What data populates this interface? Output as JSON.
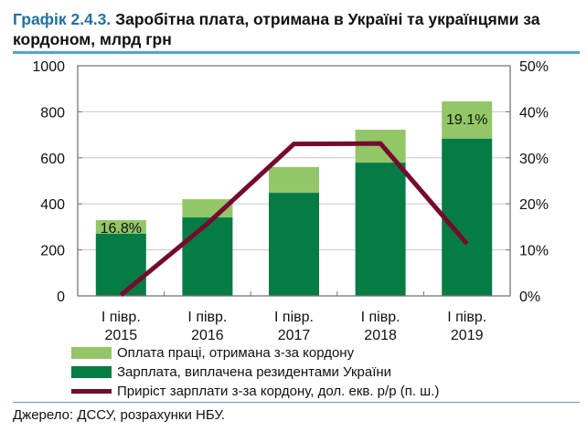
{
  "title": {
    "number": "Графік 2.4.3.",
    "text": " Заробітна плата, отримана в Україні та українцями за кордоном, млрд грн"
  },
  "source": "Джерело: ДССУ, розрахунки НБУ.",
  "colors": {
    "abroad": "#92C666",
    "domestic": "#067C45",
    "growth": "#760A2F",
    "title_accent": "#1F6FA6"
  },
  "chart_data": {
    "type": "bar",
    "stacked": true,
    "categories": [
      [
        "І півр.",
        "2015"
      ],
      [
        "І півр.",
        "2016"
      ],
      [
        "І півр.",
        "2017"
      ],
      [
        "І півр.",
        "2018"
      ],
      [
        "І півр.",
        "2019"
      ]
    ],
    "ylim": [
      0,
      1000
    ],
    "yticks": [
      "0",
      "200",
      "400",
      "600",
      "800",
      "1000"
    ],
    "y2lim": [
      0,
      50
    ],
    "y2ticks": [
      "0%",
      "10%",
      "20%",
      "30%",
      "40%",
      "50%"
    ],
    "grid": true,
    "legend_placement": "bottom",
    "series": [
      {
        "name": "Зарплата, виплачена резидентами України",
        "type": "bar",
        "values": [
          270,
          341,
          448,
          579,
          683
        ]
      },
      {
        "name": "Оплата праці, отримана з-за кордону",
        "type": "bar",
        "values": [
          59,
          79,
          112,
          143,
          162
        ]
      },
      {
        "name": "Приріст зарплати з-за кордону, дол. екв. р/р (п. ш.)",
        "type": "line",
        "axis": "right",
        "values": [
          0.2,
          15.7,
          33.0,
          33.1,
          11.3
        ]
      }
    ],
    "annotations": [
      {
        "category": 0,
        "text": "16.8%"
      },
      {
        "category": 4,
        "text": "19.1%"
      }
    ]
  }
}
